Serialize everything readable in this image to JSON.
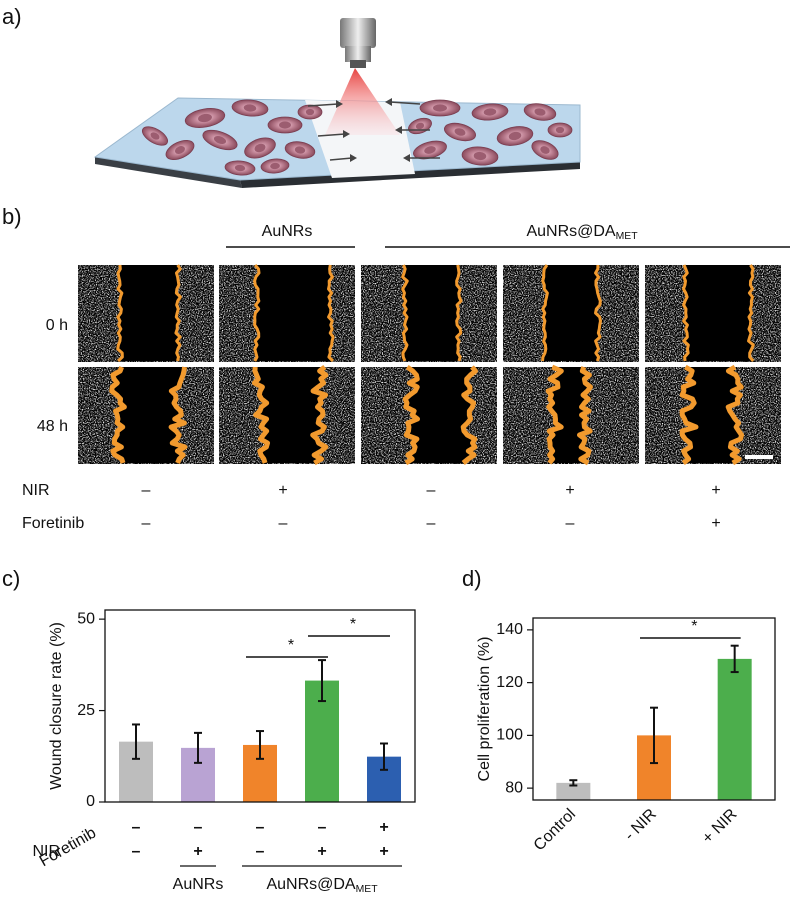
{
  "panels": {
    "a": "a)",
    "b": "b)",
    "c": "c)",
    "d": "d)"
  },
  "panel_b": {
    "groups": [
      {
        "text": "AuNRs"
      },
      {
        "text": "AuNRs@DA",
        "subscript": "MET"
      }
    ],
    "rows": [
      "0 h",
      "48 h"
    ],
    "conditions": [
      {
        "name": "NIR",
        "signs": [
          "–",
          "+",
          "–",
          "+",
          "+"
        ]
      },
      {
        "name": "Foretinib",
        "signs": [
          "–",
          "–",
          "–",
          "–",
          "+"
        ]
      }
    ]
  },
  "chart_data": [
    {
      "type": "bar",
      "ylabel": "Wound closure rate (%)",
      "ylim": [
        0,
        52.5
      ],
      "yticks": [
        0,
        25,
        50
      ],
      "values": [
        16.5,
        14.8,
        15.6,
        33.2,
        12.4
      ],
      "errors": [
        4.7,
        4.1,
        3.8,
        5.6,
        3.6
      ],
      "colors": [
        "#bdbdbd",
        "#b9a3d3",
        "#f0842a",
        "#4cae4c",
        "#2c5fb0"
      ],
      "significance": [
        {
          "from": 2,
          "to": 3,
          "label": "*"
        },
        {
          "from": 3,
          "to": 4,
          "label": "*"
        }
      ],
      "conditions": [
        {
          "name": "Foretinib",
          "signs": [
            "–",
            "–",
            "–",
            "–",
            "+"
          ]
        },
        {
          "name": "NIR",
          "signs": [
            "–",
            "+",
            "–",
            "+",
            "+"
          ]
        }
      ],
      "groups": [
        {
          "text": "AuNRs",
          "span": [
            1,
            1
          ]
        },
        {
          "text": "AuNRs@DA",
          "subscript": "MET",
          "span": [
            2,
            4
          ]
        }
      ]
    },
    {
      "type": "bar",
      "ylabel": "Cell proliferation (%)",
      "categories": [
        "Control",
        "- NIR",
        "+ NIR"
      ],
      "ylim": [
        75.5,
        144.5
      ],
      "yticks": [
        80,
        100,
        120,
        140
      ],
      "values": [
        82,
        100,
        129
      ],
      "errors": [
        1,
        10.5,
        5
      ],
      "colors": [
        "#bdbdbd",
        "#f0842a",
        "#4cae4c"
      ],
      "significance": [
        {
          "from": 1,
          "to": 2,
          "label": "*"
        }
      ]
    }
  ]
}
